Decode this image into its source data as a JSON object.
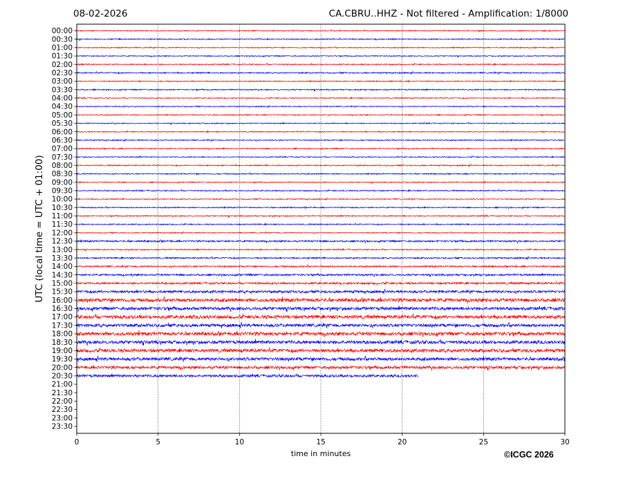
{
  "header": {
    "date": "08-02-2026",
    "title": "CA.CBRU..HHZ - Not filtered - Amplification: 1/8000"
  },
  "footer": {
    "copyright": "©ICGC 2026"
  },
  "chart_data": {
    "type": "line",
    "title": "CA.CBRU..HHZ - Not filtered - Amplification: 1/8000",
    "xlabel": "time in minutes",
    "ylabel": "UTC (local time = UTC + 01:00)",
    "xlim": [
      0,
      30
    ],
    "xticks": [
      0,
      5,
      10,
      15,
      20,
      25,
      30
    ],
    "vertical_gridlines": [
      5,
      10,
      15,
      20,
      25
    ],
    "row_labels": [
      "00:00",
      "00:30",
      "01:00",
      "01:30",
      "02:00",
      "02:30",
      "03:00",
      "03:30",
      "04:00",
      "04:30",
      "05:00",
      "05:30",
      "06:00",
      "06:30",
      "07:00",
      "07:30",
      "08:00",
      "08:30",
      "09:00",
      "09:30",
      "10:00",
      "10:30",
      "11:00",
      "11:30",
      "12:00",
      "12:30",
      "13:00",
      "13:30",
      "14:00",
      "14:30",
      "15:00",
      "15:30",
      "16:00",
      "16:30",
      "17:00",
      "17:30",
      "18:00",
      "18:30",
      "19:00",
      "19:30",
      "20:00",
      "20:30",
      "21:00",
      "21:30",
      "22:00",
      "22:30",
      "23:00",
      "23:30"
    ],
    "trace_colors": [
      "#ff0000",
      "#0000ff"
    ],
    "traces": [
      {
        "row": "00:00",
        "end_minute": 30,
        "amplitude": 0.7
      },
      {
        "row": "00:30",
        "end_minute": 30,
        "amplitude": 0.8
      },
      {
        "row": "01:00",
        "end_minute": 30,
        "amplitude": 0.7
      },
      {
        "row": "01:30",
        "end_minute": 30,
        "amplitude": 0.7
      },
      {
        "row": "02:00",
        "end_minute": 30,
        "amplitude": 0.8
      },
      {
        "row": "02:30",
        "end_minute": 30,
        "amplitude": 0.9
      },
      {
        "row": "03:00",
        "end_minute": 30,
        "amplitude": 0.7
      },
      {
        "row": "03:30",
        "end_minute": 30,
        "amplitude": 0.8
      },
      {
        "row": "04:00",
        "end_minute": 30,
        "amplitude": 0.7
      },
      {
        "row": "04:30",
        "end_minute": 30,
        "amplitude": 0.7
      },
      {
        "row": "05:00",
        "end_minute": 30,
        "amplitude": 0.7
      },
      {
        "row": "05:30",
        "end_minute": 30,
        "amplitude": 0.7
      },
      {
        "row": "06:00",
        "end_minute": 30,
        "amplitude": 0.7
      },
      {
        "row": "06:30",
        "end_minute": 30,
        "amplitude": 0.8
      },
      {
        "row": "07:00",
        "end_minute": 30,
        "amplitude": 0.8
      },
      {
        "row": "07:30",
        "end_minute": 30,
        "amplitude": 0.7
      },
      {
        "row": "08:00",
        "end_minute": 30,
        "amplitude": 0.8
      },
      {
        "row": "08:30",
        "end_minute": 30,
        "amplitude": 0.8
      },
      {
        "row": "09:00",
        "end_minute": 30,
        "amplitude": 0.7
      },
      {
        "row": "09:30",
        "end_minute": 30,
        "amplitude": 0.8
      },
      {
        "row": "10:00",
        "end_minute": 30,
        "amplitude": 0.7
      },
      {
        "row": "10:30",
        "end_minute": 30,
        "amplitude": 0.8
      },
      {
        "row": "11:00",
        "end_minute": 30,
        "amplitude": 0.8
      },
      {
        "row": "11:30",
        "end_minute": 30,
        "amplitude": 0.8
      },
      {
        "row": "12:00",
        "end_minute": 30,
        "amplitude": 0.7
      },
      {
        "row": "12:30",
        "end_minute": 30,
        "amplitude": 1.2
      },
      {
        "row": "13:00",
        "end_minute": 30,
        "amplitude": 0.8
      },
      {
        "row": "13:30",
        "end_minute": 30,
        "amplitude": 1.0
      },
      {
        "row": "14:00",
        "end_minute": 30,
        "amplitude": 1.1
      },
      {
        "row": "14:30",
        "end_minute": 30,
        "amplitude": 1.3
      },
      {
        "row": "15:00",
        "end_minute": 30,
        "amplitude": 1.4
      },
      {
        "row": "15:30",
        "end_minute": 30,
        "amplitude": 1.8
      },
      {
        "row": "16:00",
        "end_minute": 30,
        "amplitude": 2.4
      },
      {
        "row": "16:30",
        "end_minute": 30,
        "amplitude": 2.2
      },
      {
        "row": "17:00",
        "end_minute": 30,
        "amplitude": 2.4
      },
      {
        "row": "17:30",
        "end_minute": 30,
        "amplitude": 2.2
      },
      {
        "row": "18:00",
        "end_minute": 30,
        "amplitude": 2.4
      },
      {
        "row": "18:30",
        "end_minute": 30,
        "amplitude": 2.3
      },
      {
        "row": "19:00",
        "end_minute": 30,
        "amplitude": 2.4
      },
      {
        "row": "19:30",
        "end_minute": 30,
        "amplitude": 2.2
      },
      {
        "row": "20:00",
        "end_minute": 30,
        "amplitude": 2.0
      },
      {
        "row": "20:30",
        "end_minute": 21,
        "amplitude": 1.8
      }
    ]
  }
}
